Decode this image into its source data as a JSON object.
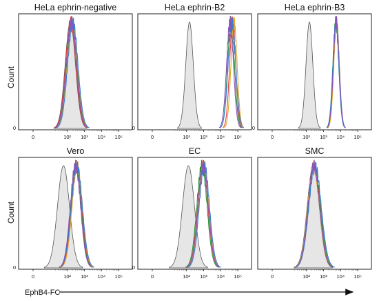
{
  "figure": {
    "x_axis_label": "EphB4-FC",
    "y_axis_label": "Count"
  },
  "chart_data": [
    {
      "type": "area",
      "title": "HeLa ephrin-negative",
      "xscale": "log",
      "xlim": [
        0.3,
        300000
      ],
      "ylim": [
        0,
        1
      ],
      "xticks": [
        "0",
        "10²",
        "10³",
        "10⁴",
        "10⁵"
      ],
      "yticks": [
        "0"
      ],
      "ylabel": "Count",
      "grid": false,
      "control": {
        "peak": 150,
        "width": 0.3
      },
      "series": [
        {
          "color": "#d94040",
          "peak": 160,
          "width": 0.3
        },
        {
          "color": "#2b8f3a",
          "peak": 185,
          "width": 0.3
        },
        {
          "color": "#e3a82b",
          "peak": 200,
          "width": 0.3
        },
        {
          "color": "#3a7bd5",
          "peak": 210,
          "width": 0.3
        },
        {
          "color": "#8a55b5",
          "peak": 175,
          "width": 0.3
        }
      ]
    },
    {
      "type": "area",
      "title": "HeLa ephrin-B2",
      "xscale": "log",
      "xlim": [
        0.3,
        300000
      ],
      "ylim": [
        0,
        1
      ],
      "xticks": [
        "0",
        "10²",
        "10³",
        "10⁴",
        "10⁵"
      ],
      "yticks": [
        "0"
      ],
      "grid": false,
      "control": {
        "peak": 150,
        "width": 0.22
      },
      "series": [
        {
          "color": "#d94040",
          "peak": 50000,
          "width": 0.18
        },
        {
          "color": "#2b8f3a",
          "peak": 40000,
          "width": 0.2
        },
        {
          "color": "#e3a82b",
          "peak": 60000,
          "width": 0.18
        },
        {
          "color": "#3a7bd5",
          "peak": 45000,
          "width": 0.22
        },
        {
          "color": "#8a55b5",
          "peak": 35000,
          "width": 0.2
        }
      ]
    },
    {
      "type": "area",
      "title": "HeLa ephrin-B3",
      "xscale": "log",
      "xlim": [
        0.3,
        300000
      ],
      "ylim": [
        0,
        1
      ],
      "xticks": [
        "0",
        "10²",
        "10³",
        "10⁴",
        "10⁵"
      ],
      "yticks": [
        "0"
      ],
      "grid": false,
      "control": {
        "peak": 150,
        "width": 0.2
      },
      "series": [
        {
          "color": "#d94040",
          "peak": 5500,
          "width": 0.17
        },
        {
          "color": "#2b8f3a",
          "peak": 5200,
          "width": 0.17
        },
        {
          "color": "#e3a82b",
          "peak": 5800,
          "width": 0.16
        },
        {
          "color": "#3a7bd5",
          "peak": 5300,
          "width": 0.17
        },
        {
          "color": "#8a55b5",
          "peak": 5600,
          "width": 0.17
        }
      ]
    },
    {
      "type": "area",
      "title": "Vero",
      "xscale": "log",
      "xlim": [
        0.3,
        300000
      ],
      "ylim": [
        0,
        1
      ],
      "xticks": [
        "0",
        "10²",
        "10³",
        "10⁴",
        "10⁵"
      ],
      "yticks": [
        "0"
      ],
      "ylabel": "Count",
      "grid": false,
      "control": {
        "peak": 60,
        "width": 0.35
      },
      "series": [
        {
          "color": "#d94040",
          "peak": 350,
          "width": 0.3
        },
        {
          "color": "#2b8f3a",
          "peak": 320,
          "width": 0.3
        },
        {
          "color": "#e3a82b",
          "peak": 380,
          "width": 0.3
        },
        {
          "color": "#3a7bd5",
          "peak": 360,
          "width": 0.32
        },
        {
          "color": "#8a55b5",
          "peak": 300,
          "width": 0.3
        }
      ]
    },
    {
      "type": "area",
      "title": "EC",
      "xscale": "log",
      "xlim": [
        0.3,
        300000
      ],
      "ylim": [
        0,
        1
      ],
      "xticks": [
        "0",
        "10²",
        "10³",
        "10⁴",
        "10⁵"
      ],
      "yticks": [
        "0"
      ],
      "grid": false,
      "control": {
        "peak": 130,
        "width": 0.35
      },
      "series": [
        {
          "color": "#d94040",
          "peak": 900,
          "width": 0.3
        },
        {
          "color": "#2b8f3a",
          "peak": 800,
          "width": 0.3
        },
        {
          "color": "#e3a82b",
          "peak": 1000,
          "width": 0.3
        },
        {
          "color": "#3a7bd5",
          "peak": 1100,
          "width": 0.3
        },
        {
          "color": "#8a55b5",
          "peak": 950,
          "width": 0.3
        }
      ]
    },
    {
      "type": "area",
      "title": "SMC",
      "xscale": "log",
      "xlim": [
        0.3,
        300000
      ],
      "ylim": [
        0,
        1
      ],
      "xticks": [
        "0",
        "10²",
        "10³",
        "10⁴",
        "10⁵"
      ],
      "yticks": [],
      "grid": false,
      "control": {
        "peak": 250,
        "width": 0.35
      },
      "series": [
        {
          "color": "#d94040",
          "peak": 280,
          "width": 0.34
        },
        {
          "color": "#2b8f3a",
          "peak": 300,
          "width": 0.35
        },
        {
          "color": "#e3a82b",
          "peak": 260,
          "width": 0.34
        },
        {
          "color": "#3a7bd5",
          "peak": 320,
          "width": 0.36
        },
        {
          "color": "#8a55b5",
          "peak": 270,
          "width": 0.34
        }
      ]
    }
  ]
}
